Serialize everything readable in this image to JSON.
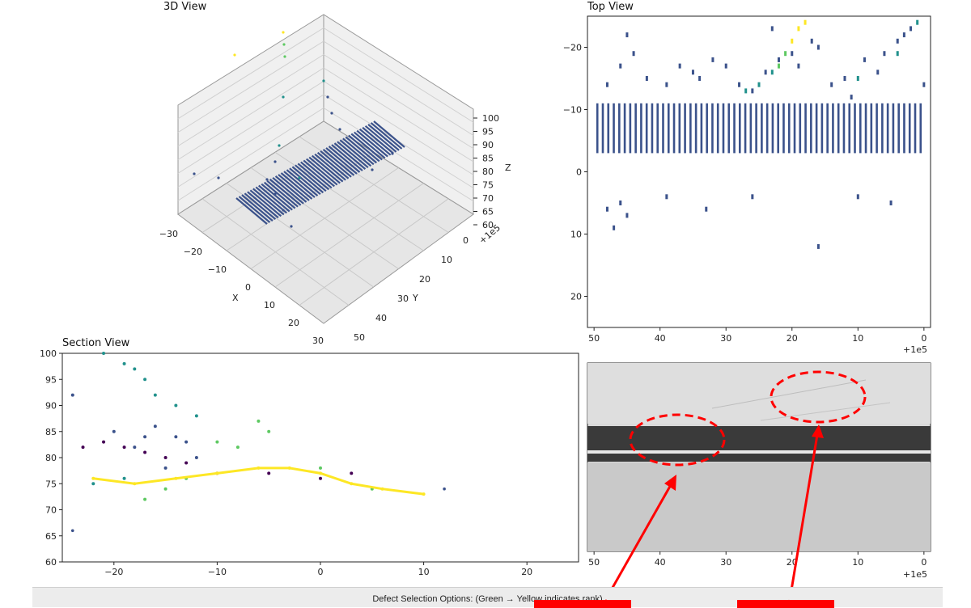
{
  "footer": {
    "text": "Defect Selection Options: (Green → Yellow indicates rank)"
  },
  "colors": {
    "line": "#ff0000",
    "viridis": [
      "#440154",
      "#3b528b",
      "#21918c",
      "#5ec962",
      "#fde725"
    ],
    "point": "#3b528b"
  },
  "panels": {
    "view3d": {
      "title": "3D View",
      "x_label": "X",
      "y_label": "Y",
      "z_label": "Z",
      "x_ticks": [
        "−30",
        "−20",
        "−10",
        "0",
        "10",
        "20",
        "30"
      ],
      "y_ticks": [
        "0",
        "10",
        "20",
        "30",
        "40",
        "50"
      ],
      "z_ticks": [
        "60",
        "65",
        "70",
        "75",
        "80",
        "85",
        "90",
        "95",
        "100"
      ],
      "offset": "+1e5"
    },
    "top": {
      "title": "Top View",
      "y_ticks": [
        "−20",
        "−10",
        "0",
        "10",
        "20"
      ],
      "x_ticks": [
        "50",
        "40",
        "30",
        "20",
        "10",
        "0"
      ],
      "offset": "+1e5"
    },
    "section": {
      "title": "Section View",
      "y_ticks": [
        "100",
        "95",
        "90",
        "85",
        "80",
        "75",
        "70",
        "65",
        "60"
      ],
      "x_ticks": [
        "−20",
        "−10",
        "0",
        "10",
        "20"
      ]
    },
    "photo": {
      "x_ticks": [
        "50",
        "40",
        "30",
        "20",
        "10",
        "0"
      ],
      "offset": "+1e5"
    }
  },
  "chart_data": [
    {
      "type": "scatter",
      "title": "Top View",
      "xlim": [
        51,
        -1
      ],
      "ylim": [
        25,
        -25
      ],
      "x_offset": "+1e5",
      "band": {
        "x_start": 49.5,
        "x_end": 0.5,
        "count": 60,
        "y_top": -11,
        "y_bottom": -3,
        "y_split": 0
      },
      "scatter": [
        {
          "x": 48,
          "y": -14
        },
        {
          "x": 46,
          "y": -17
        },
        {
          "x": 45,
          "y": -22
        },
        {
          "x": 44,
          "y": -19
        },
        {
          "x": 42,
          "y": -15
        },
        {
          "x": 39,
          "y": -14
        },
        {
          "x": 37,
          "y": -17
        },
        {
          "x": 35,
          "y": -16
        },
        {
          "x": 34,
          "y": -15
        },
        {
          "x": 32,
          "y": -18
        },
        {
          "x": 30,
          "y": -17
        },
        {
          "x": 28,
          "y": -14
        },
        {
          "x": 26,
          "y": -13
        },
        {
          "x": 24,
          "y": -16
        },
        {
          "x": 23,
          "y": -23
        },
        {
          "x": 22,
          "y": -18
        },
        {
          "x": 20,
          "y": -19
        },
        {
          "x": 19,
          "y": -17
        },
        {
          "x": 17,
          "y": -21
        },
        {
          "x": 16,
          "y": -20
        },
        {
          "x": 14,
          "y": -14
        },
        {
          "x": 12,
          "y": -15
        },
        {
          "x": 11,
          "y": -12
        },
        {
          "x": 9,
          "y": -18
        },
        {
          "x": 7,
          "y": -16
        },
        {
          "x": 6,
          "y": -19
        },
        {
          "x": 4,
          "y": -21
        },
        {
          "x": 3,
          "y": -22
        },
        {
          "x": 2,
          "y": -23
        },
        {
          "x": 0,
          "y": -14
        },
        {
          "x": 48,
          "y": 6
        },
        {
          "x": 47,
          "y": 9
        },
        {
          "x": 46,
          "y": 5
        },
        {
          "x": 45,
          "y": 7
        },
        {
          "x": 39,
          "y": 4
        },
        {
          "x": 33,
          "y": 6
        },
        {
          "x": 26,
          "y": 4
        },
        {
          "x": 16,
          "y": 12
        },
        {
          "x": 10,
          "y": 4
        },
        {
          "x": 5,
          "y": 5
        }
      ],
      "highlight": [
        {
          "x": 27,
          "y": -13,
          "rank": 0.4
        },
        {
          "x": 25,
          "y": -14,
          "rank": 0.5
        },
        {
          "x": 23,
          "y": -16,
          "rank": 0.6
        },
        {
          "x": 22,
          "y": -17,
          "rank": 0.7
        },
        {
          "x": 21,
          "y": -19,
          "rank": 0.8
        },
        {
          "x": 20,
          "y": -21,
          "rank": 0.9
        },
        {
          "x": 19,
          "y": -23,
          "rank": 1.0
        },
        {
          "x": 18,
          "y": -24,
          "rank": 1.0
        },
        {
          "x": 10,
          "y": -15,
          "rank": 0.6
        },
        {
          "x": 4,
          "y": -19,
          "rank": 0.5
        },
        {
          "x": 1,
          "y": -24,
          "rank": 0.5
        }
      ]
    },
    {
      "type": "scatter",
      "title": "Section View",
      "xlim": [
        -25,
        25
      ],
      "ylim": [
        60,
        100
      ],
      "series": [
        {
          "rank": 0.0,
          "points": [
            {
              "x": -23,
              "y": 82
            },
            {
              "x": -21,
              "y": 83
            },
            {
              "x": -19,
              "y": 82
            },
            {
              "x": -17,
              "y": 81
            },
            {
              "x": -15,
              "y": 80
            },
            {
              "x": -13,
              "y": 79
            },
            {
              "x": -10,
              "y": 77
            },
            {
              "x": -5,
              "y": 77
            },
            {
              "x": 0,
              "y": 76
            },
            {
              "x": 3,
              "y": 77
            }
          ]
        },
        {
          "rank": 0.3,
          "points": [
            {
              "x": -24,
              "y": 92
            },
            {
              "x": -20,
              "y": 85
            },
            {
              "x": -17,
              "y": 84
            },
            {
              "x": -16,
              "y": 86
            },
            {
              "x": -14,
              "y": 84
            },
            {
              "x": -13,
              "y": 83
            },
            {
              "x": -12,
              "y": 80
            },
            {
              "x": -18,
              "y": 82
            },
            {
              "x": -15,
              "y": 78
            }
          ]
        },
        {
          "rank": 0.5,
          "points": [
            {
              "x": -21,
              "y": 100
            },
            {
              "x": -19,
              "y": 98
            },
            {
              "x": -18,
              "y": 97
            },
            {
              "x": -17,
              "y": 95
            },
            {
              "x": -16,
              "y": 92
            },
            {
              "x": -14,
              "y": 90
            },
            {
              "x": -12,
              "y": 88
            },
            {
              "x": -19,
              "y": 76
            },
            {
              "x": -22,
              "y": 75
            }
          ]
        },
        {
          "rank": 0.7,
          "points": [
            {
              "x": -17,
              "y": 72
            },
            {
              "x": -15,
              "y": 74
            },
            {
              "x": -13,
              "y": 76
            },
            {
              "x": -10,
              "y": 83
            },
            {
              "x": -8,
              "y": 82
            },
            {
              "x": -6,
              "y": 87
            },
            {
              "x": -5,
              "y": 85
            },
            {
              "x": 0,
              "y": 78
            },
            {
              "x": 5,
              "y": 74
            }
          ]
        },
        {
          "rank": 1.0,
          "points": [
            {
              "x": -22,
              "y": 76
            },
            {
              "x": -18,
              "y": 75
            },
            {
              "x": -14,
              "y": 76
            },
            {
              "x": -10,
              "y": 77
            },
            {
              "x": -6,
              "y": 78
            },
            {
              "x": -3,
              "y": 78
            },
            {
              "x": 0,
              "y": 77
            },
            {
              "x": 3,
              "y": 75
            },
            {
              "x": 6,
              "y": 74
            },
            {
              "x": 10,
              "y": 73
            }
          ]
        }
      ],
      "outliers": [
        {
          "x": -24,
          "y": 66
        },
        {
          "x": 12,
          "y": 74
        }
      ]
    },
    {
      "type": "scatter",
      "title": "3D View",
      "xlim": [
        -30,
        30
      ],
      "ylim": [
        0,
        50
      ],
      "zlim": [
        60,
        100
      ],
      "band": {
        "count": 50
      }
    }
  ]
}
